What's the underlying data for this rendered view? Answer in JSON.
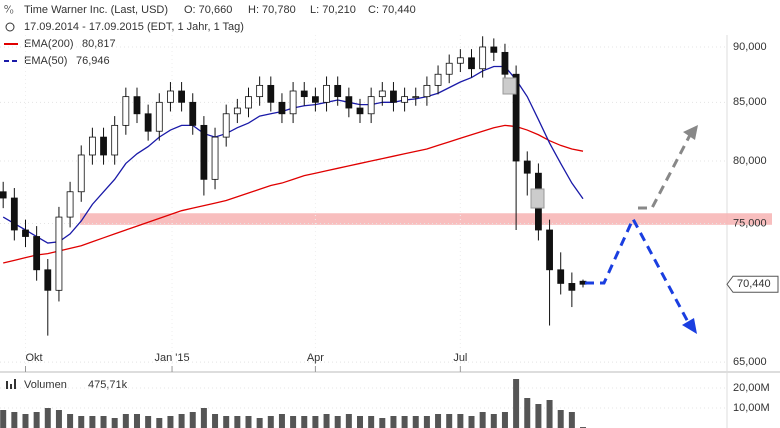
{
  "chart_data": {
    "type": "candlestick",
    "title": "Time Warner Inc. (Last, USD)",
    "ohlc_labels": [
      "O: 70,660",
      "H: 70,780",
      "L: 70,210",
      "C: 70,440"
    ],
    "subtitle": "17.09.2014 - 17.09.2015 (EDT, 1 Jahr, 1 Tag)",
    "x": [
      "2014-09-17",
      "2014-09-24",
      "2014-10-01",
      "2014-10-08",
      "2014-10-15",
      "2014-10-22",
      "2014-10-29",
      "2014-11-05",
      "2014-11-12",
      "2014-11-19",
      "2014-11-26",
      "2014-12-03",
      "2014-12-10",
      "2014-12-17",
      "2014-12-24",
      "2014-12-31",
      "2015-01-07",
      "2015-01-14",
      "2015-01-21",
      "2015-01-28",
      "2015-02-04",
      "2015-02-11",
      "2015-02-18",
      "2015-02-25",
      "2015-03-04",
      "2015-03-11",
      "2015-03-18",
      "2015-03-25",
      "2015-04-01",
      "2015-04-08",
      "2015-04-15",
      "2015-04-22",
      "2015-04-29",
      "2015-05-06",
      "2015-05-13",
      "2015-05-20",
      "2015-05-27",
      "2015-06-03",
      "2015-06-10",
      "2015-06-17",
      "2015-06-24",
      "2015-07-01",
      "2015-07-08",
      "2015-07-15",
      "2015-07-22",
      "2015-07-29",
      "2015-08-05",
      "2015-08-12",
      "2015-08-19",
      "2015-08-26",
      "2015-09-02",
      "2015-09-09",
      "2015-09-16"
    ],
    "open": [
      77.5,
      77.0,
      74.5,
      74.0,
      71.5,
      70.0,
      75.5,
      77.5,
      80.5,
      82.0,
      80.5,
      83.0,
      85.5,
      84.0,
      82.5,
      85.0,
      86.0,
      85.0,
      83.0,
      78.5,
      82.0,
      84.0,
      84.5,
      85.5,
      86.5,
      85.0,
      84.0,
      86.0,
      85.5,
      85.0,
      86.5,
      85.5,
      84.5,
      84.0,
      85.5,
      86.0,
      85.0,
      85.5,
      85.5,
      86.5,
      87.5,
      88.5,
      89.0,
      88.0,
      90.0,
      89.5,
      87.5,
      80.0,
      79.0,
      74.5,
      71.5,
      70.5,
      70.66
    ],
    "high": [
      78.3,
      77.8,
      75.3,
      74.8,
      72.3,
      76.3,
      78.3,
      81.3,
      82.8,
      82.8,
      83.8,
      86.3,
      86.3,
      84.8,
      85.8,
      86.8,
      86.8,
      85.8,
      83.8,
      82.8,
      84.8,
      85.3,
      86.3,
      87.3,
      87.3,
      85.8,
      86.8,
      86.8,
      86.3,
      87.3,
      87.3,
      86.3,
      85.3,
      86.3,
      86.8,
      86.8,
      86.3,
      86.3,
      87.3,
      88.3,
      89.3,
      89.8,
      89.8,
      91.0,
      90.8,
      90.3,
      88.3,
      80.8,
      79.8,
      75.3,
      72.8,
      71.3,
      70.78
    ],
    "low": [
      76.2,
      73.7,
      73.2,
      70.7,
      66.8,
      69.2,
      74.7,
      76.7,
      79.7,
      79.7,
      79.7,
      82.2,
      83.2,
      81.7,
      81.7,
      84.2,
      84.2,
      82.2,
      77.2,
      77.7,
      81.2,
      83.2,
      83.7,
      84.7,
      84.2,
      83.2,
      83.2,
      84.7,
      84.2,
      84.2,
      84.7,
      83.7,
      83.2,
      83.2,
      84.7,
      84.2,
      84.2,
      84.7,
      84.7,
      85.7,
      86.7,
      87.7,
      87.2,
      87.2,
      88.7,
      86.7,
      74.5,
      77.2,
      73.7,
      67.5,
      69.7,
      68.8,
      70.21
    ],
    "close": [
      77.0,
      74.5,
      74.0,
      71.5,
      70.0,
      75.5,
      77.5,
      80.5,
      82.0,
      80.5,
      83.0,
      85.5,
      84.0,
      82.5,
      85.0,
      86.0,
      85.0,
      83.0,
      78.5,
      82.0,
      84.0,
      84.5,
      85.5,
      86.5,
      85.0,
      84.0,
      86.0,
      85.5,
      85.0,
      86.5,
      85.5,
      84.5,
      84.0,
      85.5,
      86.0,
      85.0,
      85.5,
      85.5,
      86.5,
      87.5,
      88.5,
      89.0,
      88.0,
      90.0,
      89.5,
      87.5,
      80.0,
      79.0,
      74.5,
      71.5,
      70.5,
      70.0,
      70.44
    ],
    "last_label": "70,440",
    "series": [
      {
        "name": "EMA(200)",
        "color": "#e00000",
        "last_label": "80,817",
        "values": [
          72.0,
          72.2,
          72.4,
          72.6,
          72.7,
          72.9,
          73.1,
          73.3,
          73.6,
          73.9,
          74.2,
          74.5,
          74.8,
          75.1,
          75.4,
          75.7,
          76.0,
          76.2,
          76.4,
          76.6,
          76.8,
          77.1,
          77.4,
          77.7,
          78.0,
          78.2,
          78.5,
          78.8,
          79.0,
          79.2,
          79.4,
          79.6,
          79.8,
          80.0,
          80.2,
          80.4,
          80.6,
          80.8,
          81.0,
          81.3,
          81.6,
          81.9,
          82.2,
          82.5,
          82.8,
          83.0,
          82.9,
          82.6,
          82.2,
          81.7,
          81.3,
          81.0,
          80.817
        ]
      },
      {
        "name": "EMA(50)",
        "color": "#1a1aa8",
        "last_label": "76,946",
        "values": [
          75.5,
          75.0,
          74.5,
          74.0,
          73.5,
          73.6,
          74.2,
          75.2,
          76.5,
          77.5,
          78.5,
          79.8,
          80.6,
          81.2,
          82.0,
          82.6,
          83.0,
          83.0,
          82.3,
          82.0,
          82.3,
          82.8,
          83.2,
          83.8,
          84.0,
          84.2,
          84.5,
          84.7,
          84.8,
          85.0,
          85.2,
          85.0,
          84.8,
          84.8,
          85.0,
          85.0,
          85.2,
          85.3,
          85.5,
          85.8,
          86.3,
          86.8,
          87.2,
          87.8,
          88.2,
          88.2,
          87.0,
          85.5,
          83.5,
          81.5,
          79.8,
          78.2,
          76.946
        ]
      }
    ],
    "support_zone": [
      74.9,
      75.8
    ],
    "xlim": [
      "2014-09-15",
      "2015-12-11"
    ],
    "xticks": [
      {
        "value": "2014-10-01",
        "label": "Okt"
      },
      {
        "value": "2015-01-01",
        "label": "Jan '15"
      },
      {
        "value": "2015-04-01",
        "label": "Apr"
      },
      {
        "value": "2015-07-01",
        "label": "Jul"
      }
    ],
    "ylim": [
      64.47,
      91.12
    ],
    "log_scale": true,
    "yticks": [
      {
        "value": 65,
        "label": "65,000"
      },
      {
        "value": 75,
        "label": "75,000"
      },
      {
        "value": 80,
        "label": "80,000"
      },
      {
        "value": 85,
        "label": "85,000"
      },
      {
        "value": 90,
        "label": "90,000"
      }
    ],
    "volume": {
      "name": "Volumen",
      "last_label": "475,71k",
      "color": "#555",
      "values": [
        9000000,
        8000000,
        7000000,
        8000000,
        10000000,
        9000000,
        7000000,
        6000000,
        6000000,
        6000000,
        5000000,
        7000000,
        7000000,
        6000000,
        5000000,
        6000000,
        7000000,
        8000000,
        10000000,
        7000000,
        6000000,
        6000000,
        6000000,
        5000000,
        6000000,
        7000000,
        6000000,
        6000000,
        6000000,
        7000000,
        6000000,
        7000000,
        6000000,
        6000000,
        5000000,
        6000000,
        6000000,
        6000000,
        6000000,
        7000000,
        7000000,
        7000000,
        6000000,
        8000000,
        7000000,
        8000000,
        24500000,
        15000000,
        12000000,
        14000000,
        9000000,
        8000000,
        475710
      ],
      "ylim": [
        0,
        25000000
      ],
      "yticks": [
        {
          "value": 10000000,
          "label": "10,00M"
        },
        {
          "value": 20000000,
          "label": "20,00M"
        }
      ]
    }
  }
}
